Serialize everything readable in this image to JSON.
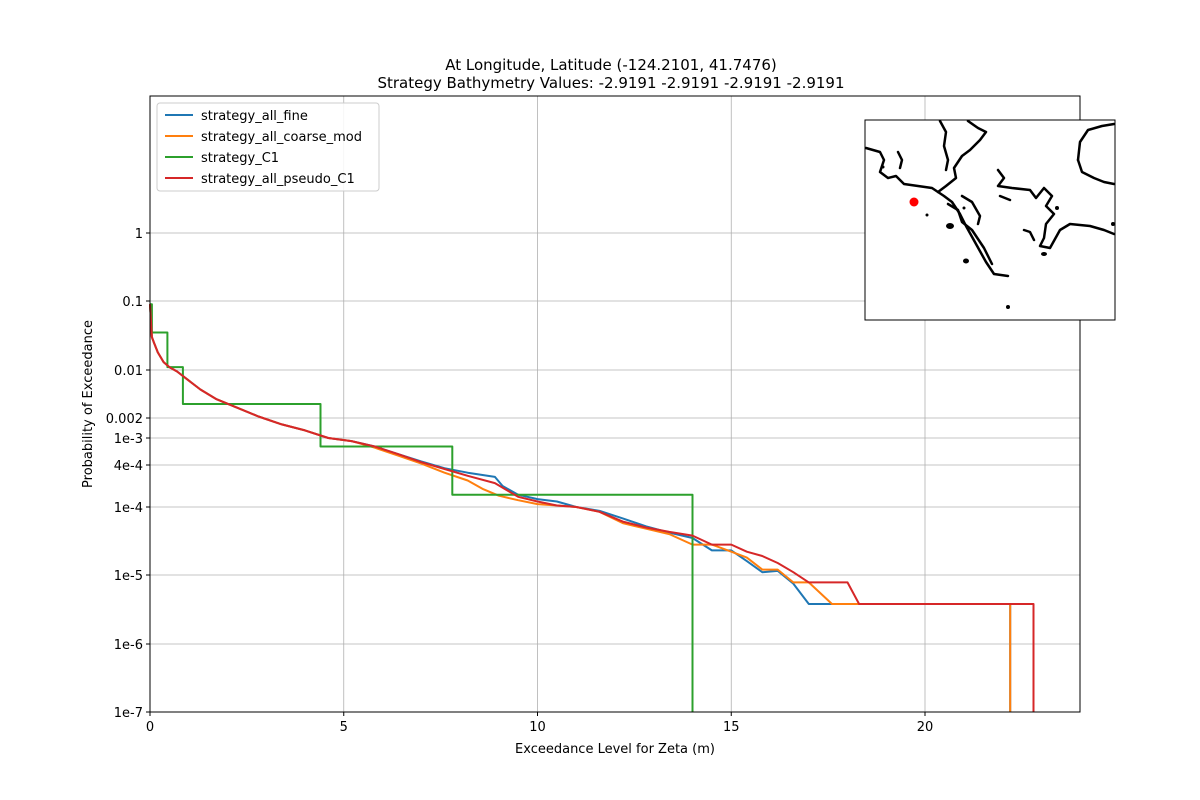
{
  "chart_data": {
    "type": "line",
    "title": "At Longitude, Latitude (-124.2101,  41.7476)",
    "subtitle": "Strategy Bathymetry Values:   -2.9191   -2.9191   -2.9191   -2.9191",
    "xlabel": "Exceedance Level for Zeta (m)",
    "ylabel": "Probability of Exceedance",
    "xlim": [
      0,
      24
    ],
    "ylim": [
      1e-07,
      100
    ],
    "yscale": "log",
    "grid": true,
    "legend_position": "upper-left",
    "x_ticks": [
      {
        "value": 0,
        "label": "0"
      },
      {
        "value": 5,
        "label": "5"
      },
      {
        "value": 10,
        "label": "10"
      },
      {
        "value": 15,
        "label": "15"
      },
      {
        "value": 20,
        "label": "20"
      }
    ],
    "y_ticks": [
      {
        "value": 1,
        "label": "1"
      },
      {
        "value": 0.1,
        "label": "0.1"
      },
      {
        "value": 0.01,
        "label": "0.01"
      },
      {
        "value": 0.002,
        "label": "0.002"
      },
      {
        "value": 0.001,
        "label": "1e-3"
      },
      {
        "value": 0.0004,
        "label": "4e-4"
      },
      {
        "value": 0.0001,
        "label": "1e-4"
      },
      {
        "value": 1e-05,
        "label": "1e-5"
      },
      {
        "value": 1e-06,
        "label": "1e-6"
      },
      {
        "value": 1e-07,
        "label": "1e-7"
      }
    ],
    "series": [
      {
        "name": "strategy_all_fine",
        "color": "#1f77b4",
        "x": [
          0,
          0.05,
          0.1,
          0.2,
          0.35,
          0.5,
          0.7,
          1.0,
          1.3,
          1.7,
          2.2,
          2.8,
          3.4,
          4.0,
          4.6,
          5.2,
          5.8,
          6.4,
          7.0,
          7.6,
          8.2,
          8.9,
          9.1,
          9.5,
          10.0,
          10.5,
          11.0,
          11.6,
          12.2,
          12.8,
          13.4,
          14.0,
          14.5,
          15.0,
          15.4,
          15.8,
          16.2,
          16.6,
          17.0,
          17.5,
          22.2,
          22.2
        ],
        "y": [
          0.09,
          0.03,
          0.025,
          0.018,
          0.013,
          0.011,
          0.0095,
          0.007,
          0.0052,
          0.0038,
          0.0029,
          0.0021,
          0.0016,
          0.0013,
          0.001,
          0.0009,
          0.00075,
          0.00058,
          0.00045,
          0.00036,
          0.00031,
          0.00027,
          0.0002,
          0.00015,
          0.00013,
          0.00012,
          0.0001,
          8.8e-05,
          6.8e-05,
          5.2e-05,
          4.2e-05,
          3.5e-05,
          2.3e-05,
          2.3e-05,
          1.6e-05,
          1.1e-05,
          1.15e-05,
          7.5e-06,
          3.8e-06,
          3.8e-06,
          3.8e-06,
          1e-07
        ]
      },
      {
        "name": "strategy_all_coarse_mod",
        "color": "#ff7f0e",
        "x": [
          0,
          0.05,
          0.1,
          0.2,
          0.35,
          0.5,
          0.7,
          1.0,
          1.3,
          1.7,
          2.2,
          2.8,
          3.4,
          4.0,
          4.6,
          5.2,
          5.8,
          6.4,
          7.0,
          7.6,
          8.2,
          8.6,
          9.0,
          9.5,
          10.0,
          10.5,
          11.0,
          11.6,
          12.2,
          12.8,
          13.4,
          14.0,
          14.5,
          15.0,
          15.4,
          15.8,
          16.2,
          16.6,
          17.0,
          17.6,
          22.2,
          22.2
        ],
        "y": [
          0.09,
          0.03,
          0.025,
          0.018,
          0.013,
          0.011,
          0.0095,
          0.007,
          0.0052,
          0.0038,
          0.0029,
          0.0021,
          0.0016,
          0.0013,
          0.001,
          0.0009,
          0.00072,
          0.00055,
          0.00042,
          0.00031,
          0.00024,
          0.00018,
          0.000145,
          0.000125,
          0.00011,
          0.000105,
          0.0001,
          8.5e-05,
          5.8e-05,
          4.8e-05,
          4e-05,
          2.8e-05,
          2.8e-05,
          2.2e-05,
          1.8e-05,
          1.2e-05,
          1.2e-05,
          7.8e-06,
          7.8e-06,
          3.8e-06,
          3.8e-06,
          1e-07
        ]
      },
      {
        "name": "strategy_C1",
        "color": "#2ca02c",
        "x": [
          0,
          0.05,
          0.05,
          0.45,
          0.45,
          0.85,
          0.85,
          4.4,
          4.4,
          7.8,
          7.8,
          14.0,
          14.0
        ],
        "y": [
          0.09,
          0.09,
          0.035,
          0.035,
          0.011,
          0.011,
          0.0032,
          0.0032,
          0.00075,
          0.00075,
          0.00015,
          0.00015,
          1e-07
        ]
      },
      {
        "name": "strategy_all_pseudo_C1",
        "color": "#d62728",
        "x": [
          0,
          0.05,
          0.1,
          0.2,
          0.35,
          0.5,
          0.7,
          1.0,
          1.3,
          1.7,
          2.2,
          2.8,
          3.4,
          4.0,
          4.6,
          5.2,
          5.8,
          6.4,
          7.0,
          7.6,
          8.2,
          8.9,
          9.5,
          10.0,
          10.5,
          11.0,
          11.6,
          12.2,
          12.8,
          13.4,
          14.0,
          14.5,
          15.0,
          15.4,
          15.8,
          16.2,
          16.6,
          17.0,
          17.5,
          18.0,
          18.3,
          22.8,
          22.8
        ],
        "y": [
          0.09,
          0.03,
          0.025,
          0.018,
          0.013,
          0.011,
          0.0095,
          0.007,
          0.0052,
          0.0038,
          0.0029,
          0.0021,
          0.0016,
          0.0013,
          0.001,
          0.0009,
          0.00075,
          0.00058,
          0.00044,
          0.00035,
          0.00028,
          0.00022,
          0.00014,
          0.00012,
          0.000105,
          0.0001,
          8.5e-05,
          6.1e-05,
          5e-05,
          4.3e-05,
          3.8e-05,
          2.8e-05,
          2.8e-05,
          2.2e-05,
          1.9e-05,
          1.5e-05,
          1.1e-05,
          7.8e-06,
          7.8e-06,
          7.8e-06,
          3.8e-06,
          3.8e-06,
          1e-07
        ]
      }
    ],
    "inset_map": {
      "marker_color": "#ff0000"
    }
  }
}
